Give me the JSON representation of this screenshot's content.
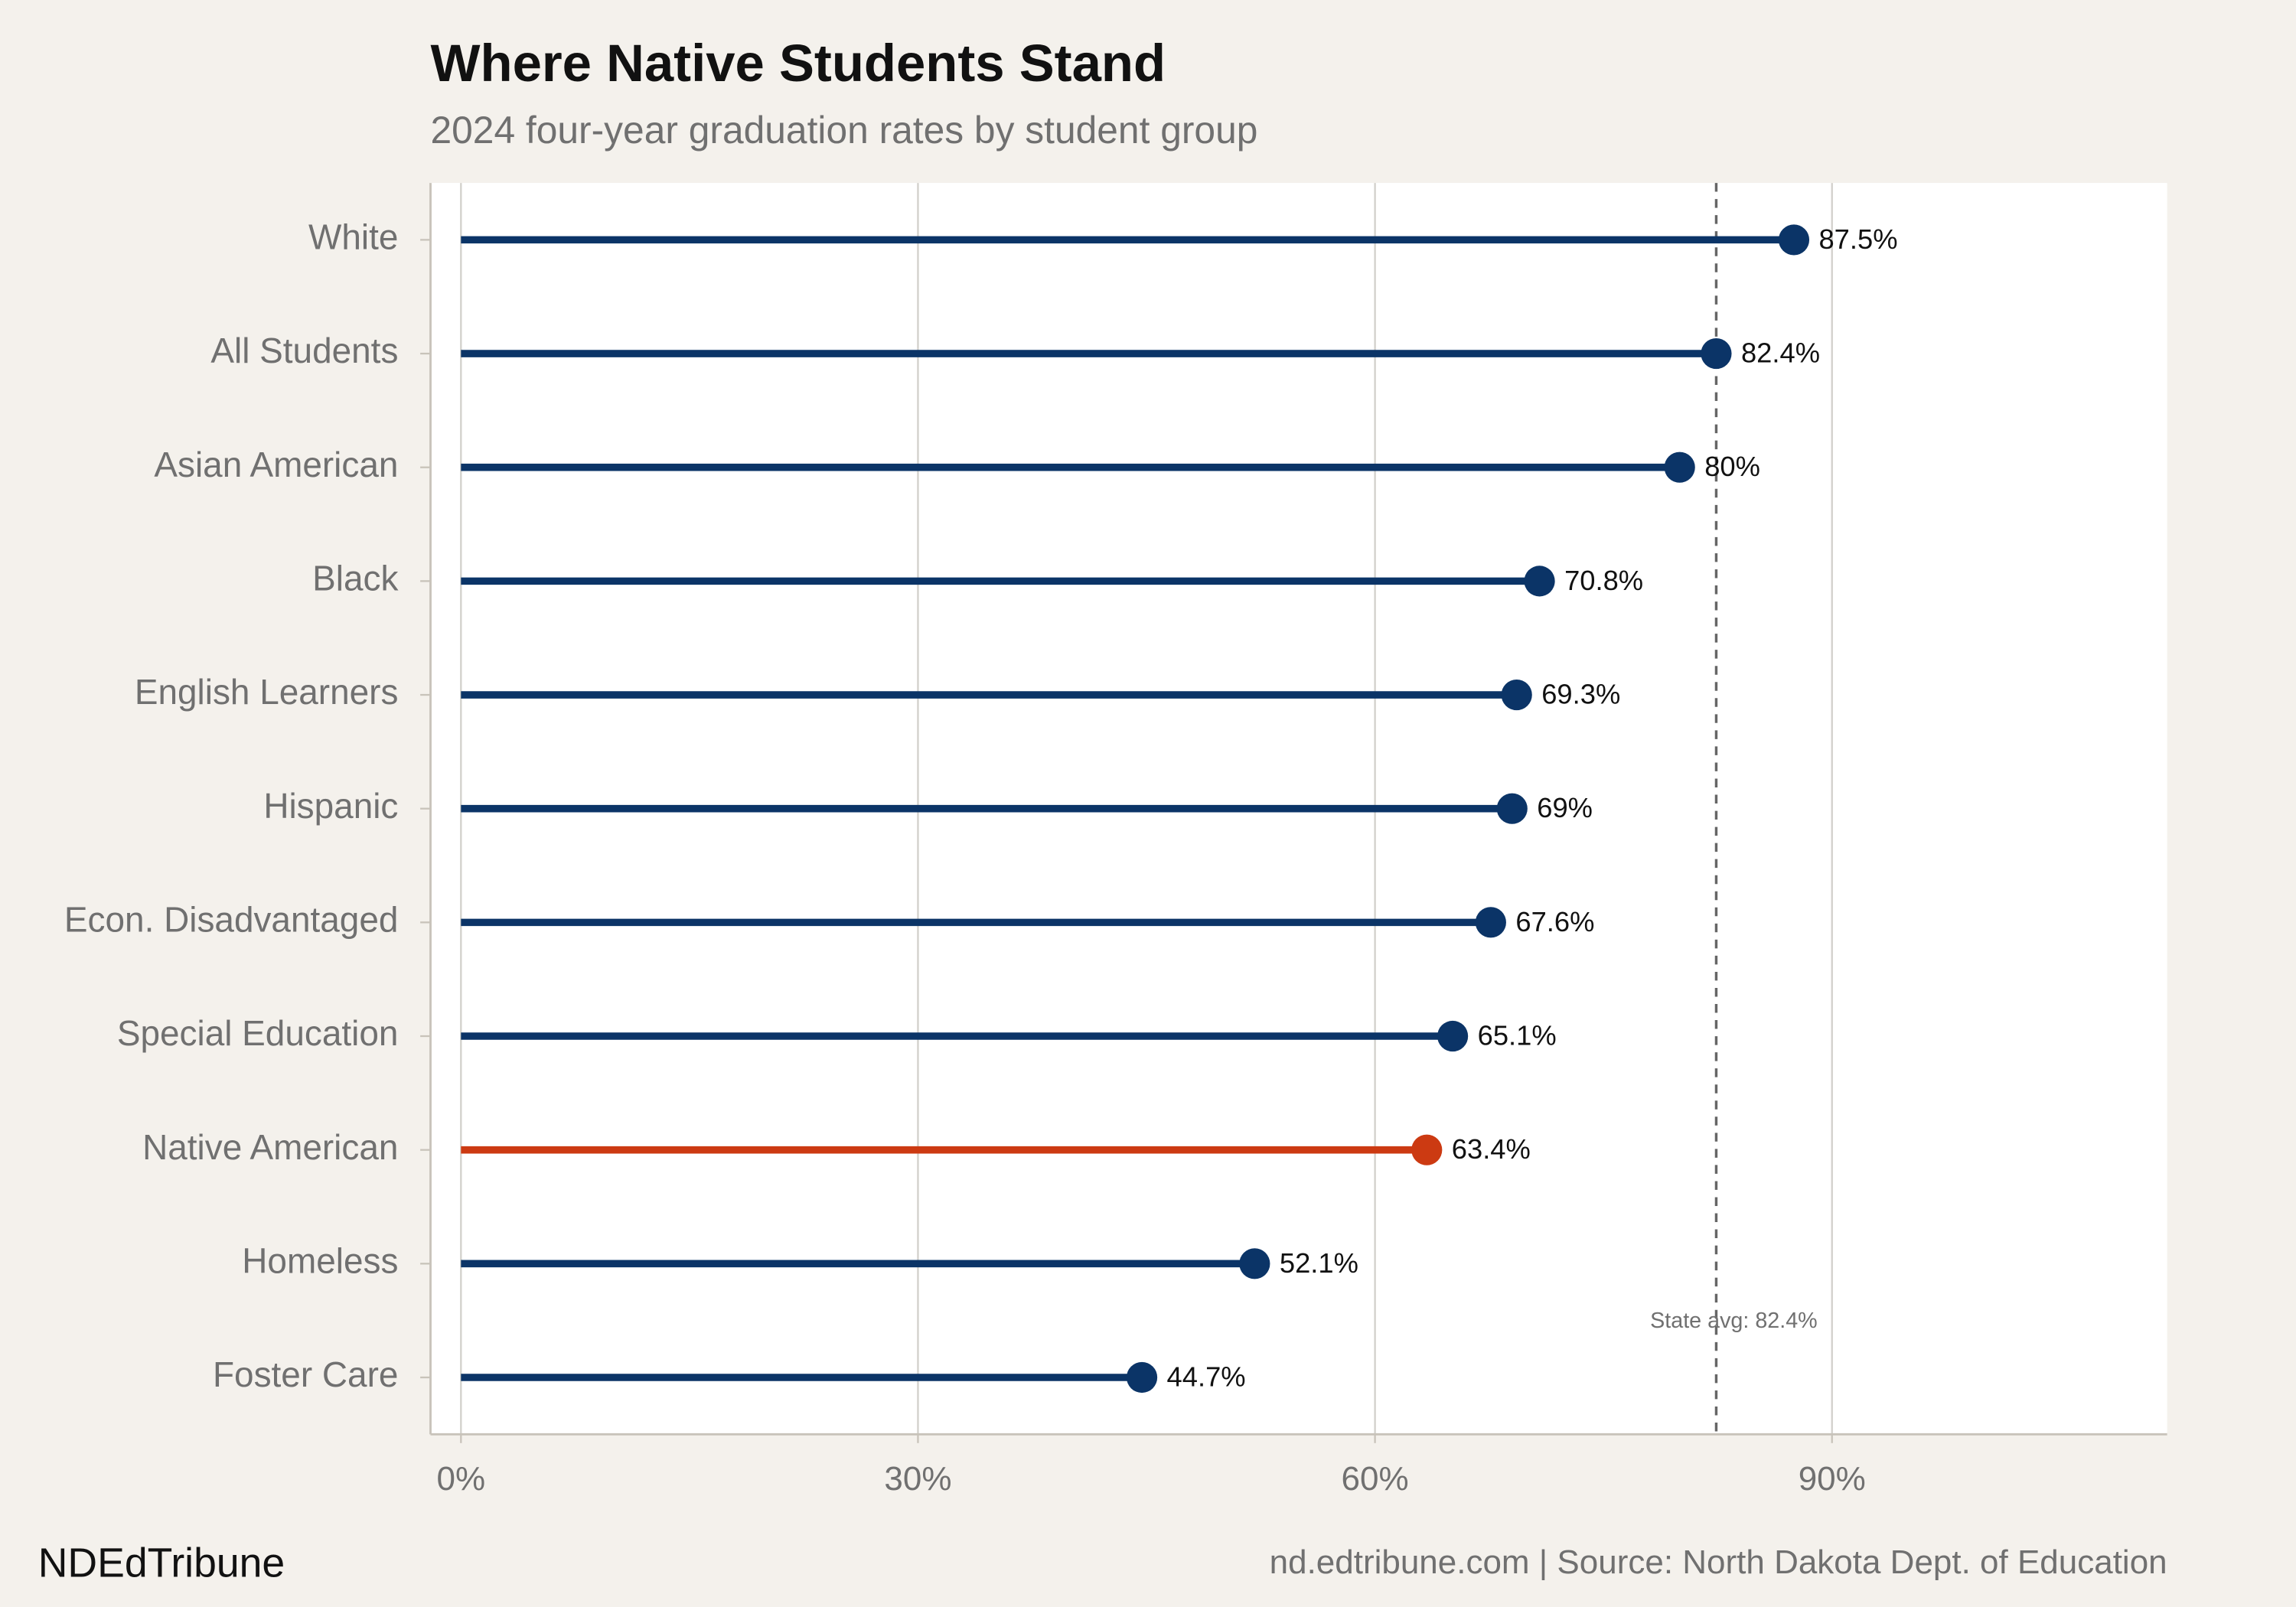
{
  "chart_data": {
    "type": "lollipop",
    "title": "Where Native Students Stand",
    "subtitle": "2024 four-year graduation rates by student group",
    "categories": [
      "White",
      "All Students",
      "Asian American",
      "Black",
      "English Learners",
      "Hispanic",
      "Econ. Disadvantaged",
      "Special Education",
      "Native American",
      "Homeless",
      "Foster Care"
    ],
    "values": [
      87.5,
      82.4,
      80,
      70.8,
      69.3,
      69,
      67.6,
      65.1,
      63.4,
      52.1,
      44.7
    ],
    "value_labels": [
      "87.5%",
      "82.4%",
      "80%",
      "70.8%",
      "69.3%",
      "69%",
      "67.6%",
      "65.1%",
      "63.4%",
      "52.1%",
      "44.7%"
    ],
    "colors": [
      "#0b3467",
      "#0b3467",
      "#0b3467",
      "#0b3467",
      "#0b3467",
      "#0b3467",
      "#0b3467",
      "#0b3467",
      "#cc3a12",
      "#0b3467",
      "#0b3467"
    ],
    "xlim": [
      -2,
      112
    ],
    "xticks": [
      {
        "value": 0,
        "label": "0%"
      },
      {
        "value": 30,
        "label": "30%"
      },
      {
        "value": 60,
        "label": "60%"
      },
      {
        "value": 90,
        "label": "90%"
      }
    ],
    "grid": true,
    "reference_line": {
      "value": 82.4,
      "label": "State avg: 82.4%"
    },
    "brand": "NDEdTribune",
    "source": "nd.edtribune.com | Source: North Dakota Dept. of Education"
  }
}
